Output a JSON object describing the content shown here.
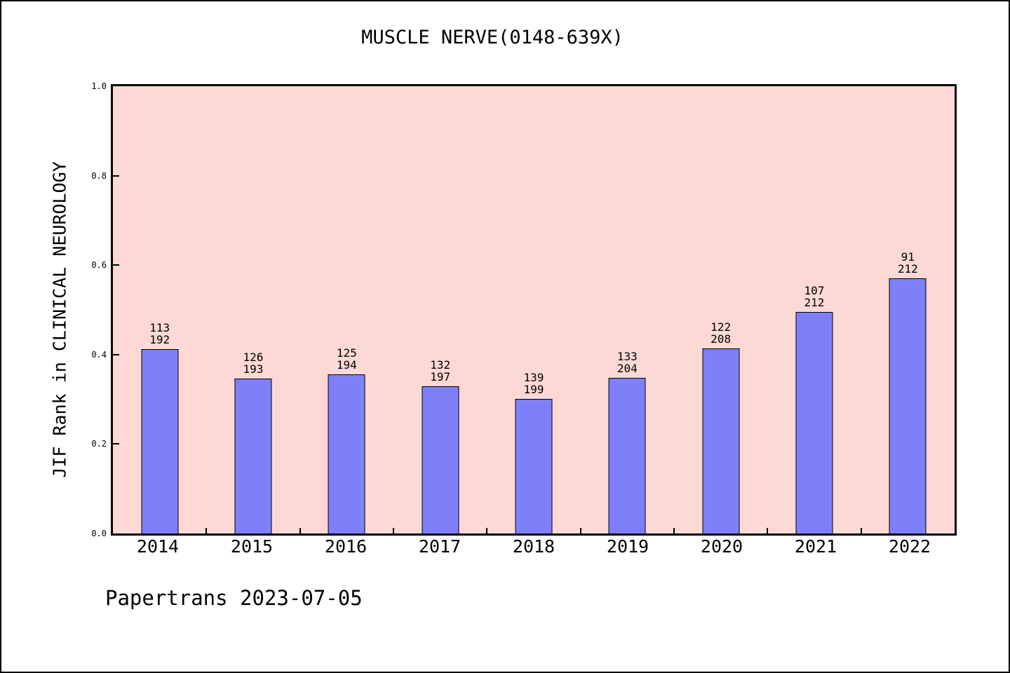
{
  "footer": "Papertrans 2023-07-05",
  "chart_data": {
    "type": "bar",
    "title": "MUSCLE NERVE(0148-639X)",
    "xlabel": "",
    "ylabel": "JIF Rank in CLINICAL NEUROLOGY",
    "ylim": [
      0.0,
      1.0
    ],
    "grid": false,
    "legend": null,
    "yticks": [
      {
        "label": "0.0",
        "value": 0.0
      },
      {
        "label": "0.2",
        "value": 0.2
      },
      {
        "label": "0.4",
        "value": 0.4
      },
      {
        "label": "0.6",
        "value": 0.6
      },
      {
        "label": "0.8",
        "value": 0.8
      },
      {
        "label": "1.0",
        "value": 1.0
      }
    ],
    "categories": [
      "2014",
      "2015",
      "2016",
      "2017",
      "2018",
      "2019",
      "2020",
      "2021",
      "2022"
    ],
    "bars": [
      {
        "year": "2014",
        "rank": 113,
        "total": 192,
        "value": 0.4115
      },
      {
        "year": "2015",
        "rank": 126,
        "total": 193,
        "value": 0.3472
      },
      {
        "year": "2016",
        "rank": 125,
        "total": 194,
        "value": 0.3557
      },
      {
        "year": "2017",
        "rank": 132,
        "total": 197,
        "value": 0.3299
      },
      {
        "year": "2018",
        "rank": 139,
        "total": 199,
        "value": 0.3015
      },
      {
        "year": "2019",
        "rank": 133,
        "total": 204,
        "value": 0.348
      },
      {
        "year": "2020",
        "rank": 122,
        "total": 208,
        "value": 0.4135
      },
      {
        "year": "2021",
        "rank": 107,
        "total": 212,
        "value": 0.4953
      },
      {
        "year": "2022",
        "rank": 91,
        "total": 212,
        "value": 0.5708
      }
    ],
    "annotation_format": "rank over total",
    "colors": {
      "bar_fill": "#7f7ffa",
      "bar_border": "#000000",
      "plot_bg": "#fdd9d5",
      "figure_bg": "#ffffff",
      "text": "#000000"
    }
  }
}
